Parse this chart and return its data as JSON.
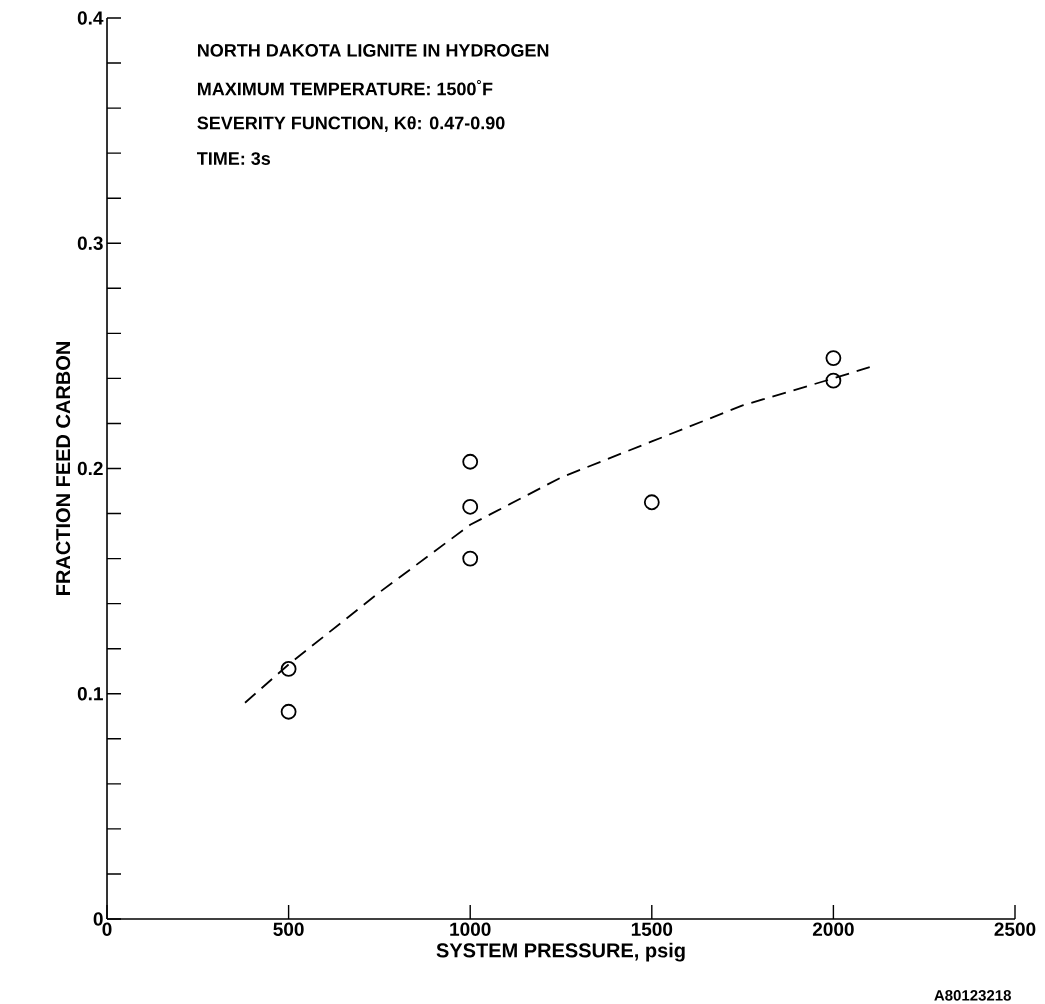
{
  "chart_data": {
    "type": "scatter",
    "xlabel": "SYSTEM PRESSURE, psig",
    "ylabel": "FRACTION FEED CARBON",
    "annotations": [
      "NORTH DAKOTA LIGNITE IN HYDROGEN",
      "MAXIMUM TEMPERATURE: 1500$^{°}$F",
      "SEVERITY FUNCTION, Kθ: 0.47-0.90",
      "TIME: 3s",
      "A80123218"
    ],
    "xlim": [
      0,
      2500
    ],
    "ylim": [
      0,
      0.4
    ],
    "xticks": [
      0,
      500,
      1000,
      1500,
      2000,
      2500
    ],
    "yticks": [
      0,
      {
        "value": 0.02,
        "label": null
      },
      {
        "value": 0.04,
        "label": null
      },
      {
        "value": 0.06,
        "label": null
      },
      {
        "value": 0.08,
        "label": null
      },
      0.1,
      {
        "value": 0.12,
        "label": null
      },
      {
        "value": 0.14,
        "label": null
      },
      {
        "value": 0.16,
        "label": null
      },
      {
        "value": 0.18,
        "label": null
      },
      0.2,
      {
        "value": 0.22,
        "label": null
      },
      {
        "value": 0.24,
        "label": null
      },
      {
        "value": 0.26,
        "label": null
      },
      {
        "value": 0.28,
        "label": null
      },
      0.3,
      {
        "value": 0.32,
        "label": null
      },
      {
        "value": 0.34,
        "label": null
      },
      {
        "value": 0.36,
        "label": null
      },
      {
        "value": 0.38,
        "label": null
      },
      0.4
    ],
    "grid": false,
    "series": [
      {
        "color": "#000000",
        "marker": "circle",
        "x": [
          500,
          500,
          1000,
          1000,
          1000,
          1500,
          2000,
          2000
        ],
        "values": [
          0.111,
          0.092,
          0.203,
          0.183,
          0.16,
          0.185,
          0.249,
          0.239
        ]
      },
      {
        "type": "line",
        "color": "#000000",
        "marker": "none",
        "line_style": "dashed",
        "x": [
          380,
          500,
          750,
          1000,
          1250,
          1500,
          1750,
          2000,
          2100
        ],
        "values": [
          0.096,
          0.113,
          0.145,
          0.175,
          0.196,
          0.212,
          0.228,
          0.24,
          0.245
        ]
      }
    ]
  }
}
